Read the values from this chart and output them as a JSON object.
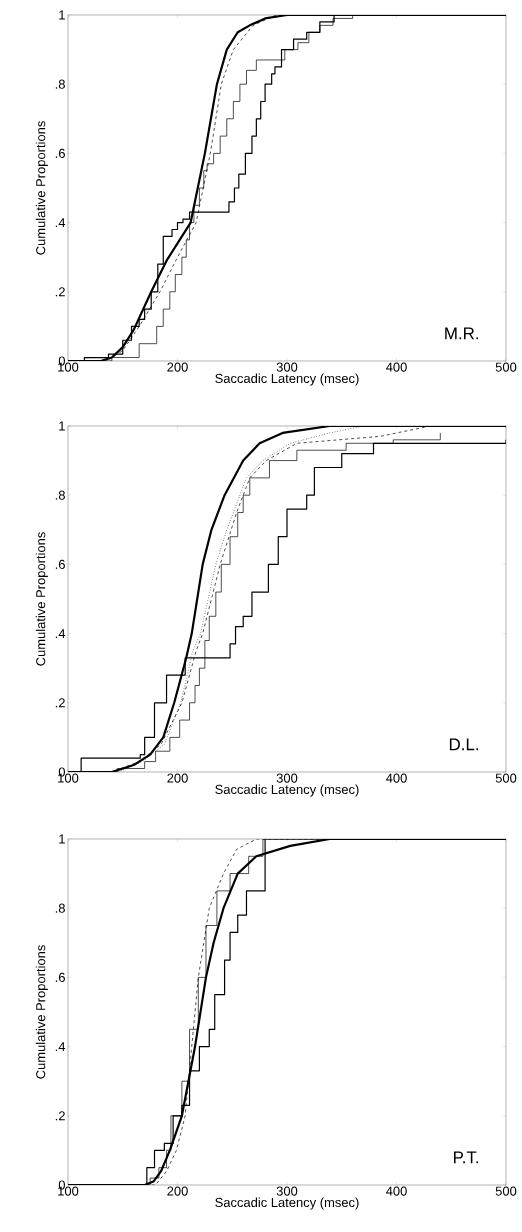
{
  "chart_data": [
    {
      "type": "line",
      "xlabel": "Saccadic Latency (msec)",
      "ylabel": "Cumulative Proportions",
      "annotations": [
        "M.R."
      ],
      "xlim": [
        100,
        500
      ],
      "ylim": [
        0,
        1
      ],
      "xticks": [
        100,
        200,
        300,
        400,
        500
      ],
      "yticks": [
        0,
        {
          "value": 0.2,
          "label": ".2"
        },
        {
          "value": 0.4,
          "label": ".4"
        },
        {
          "value": 0.6,
          "label": ".6"
        },
        {
          "value": 0.8,
          "label": ".8"
        },
        1
      ],
      "series": [
        {
          "type": "line",
          "line_style": "solid",
          "color": "#000000",
          "x": [
            100,
            130,
            140,
            150,
            160,
            176,
            190,
            212,
            225,
            236,
            245,
            255,
            266,
            280,
            300,
            500
          ],
          "values": [
            0,
            0,
            0.01,
            0.04,
            0.09,
            0.2,
            0.29,
            0.4,
            0.6,
            0.8,
            0.9,
            0.95,
            0.97,
            0.99,
            1,
            1
          ]
        },
        {
          "type": "line",
          "line_style": "dashed",
          "color": "#000000",
          "x": [
            100,
            135,
            150,
            165,
            184,
            200,
            217,
            230,
            240,
            251,
            269,
            290,
            500
          ],
          "values": [
            0,
            0,
            0.03,
            0.1,
            0.2,
            0.3,
            0.4,
            0.6,
            0.8,
            0.9,
            0.97,
            1,
            1
          ]
        },
        {
          "type": "step",
          "line_style": "solid",
          "color": "#000000",
          "x": [
            100,
            140,
            165,
            181,
            187,
            193,
            198,
            204,
            208,
            211,
            215,
            220,
            224,
            227,
            233,
            239,
            245,
            251,
            257,
            263,
            272,
            298,
            310,
            320,
            330,
            342,
            360,
            500
          ],
          "values": [
            0,
            0.01,
            0.05,
            0.1,
            0.15,
            0.2,
            0.25,
            0.3,
            0.35,
            0.4,
            0.45,
            0.5,
            0.55,
            0.57,
            0.6,
            0.65,
            0.7,
            0.75,
            0.8,
            0.84,
            0.87,
            0.9,
            0.92,
            0.95,
            0.97,
            0.99,
            1,
            1
          ]
        },
        {
          "type": "step",
          "line_style": "solid",
          "color": "#000000",
          "x": [
            100,
            115,
            137,
            150,
            158,
            165,
            170,
            176,
            182,
            187,
            195,
            200,
            205,
            211,
            247,
            252,
            256,
            262,
            268,
            272,
            276,
            280,
            286,
            289,
            295,
            306,
            318,
            330,
            343,
            500
          ],
          "values": [
            0,
            0.01,
            0.02,
            0.06,
            0.1,
            0.12,
            0.15,
            0.2,
            0.28,
            0.36,
            0.38,
            0.4,
            0.41,
            0.43,
            0.46,
            0.5,
            0.54,
            0.6,
            0.65,
            0.7,
            0.75,
            0.8,
            0.83,
            0.85,
            0.9,
            0.93,
            0.95,
            0.98,
            1,
            1
          ]
        }
      ]
    },
    {
      "type": "line",
      "xlabel": "Saccadic Latency (msec)",
      "ylabel": "Cumulative Proportions",
      "annotations": [
        "D.L."
      ],
      "xlim": [
        100,
        500
      ],
      "ylim": [
        0,
        1
      ],
      "xticks": [
        100,
        200,
        300,
        400,
        500
      ],
      "yticks": [
        0,
        {
          "value": 0.2,
          "label": ".2"
        },
        {
          "value": 0.4,
          "label": ".4"
        },
        {
          "value": 0.6,
          "label": ".6"
        },
        {
          "value": 0.8,
          "label": ".8"
        },
        1
      ],
      "series": [
        {
          "type": "line",
          "line_style": "solid",
          "color": "#000000",
          "x": [
            100,
            140,
            160,
            175,
            187,
            197,
            208,
            213,
            223,
            231,
            243,
            260,
            275,
            296,
            339,
            500
          ],
          "values": [
            0,
            0,
            0.02,
            0.05,
            0.1,
            0.2,
            0.33,
            0.4,
            0.6,
            0.7,
            0.8,
            0.9,
            0.95,
            0.98,
            1,
            1
          ]
        },
        {
          "type": "line",
          "line_style": "dashed",
          "color": "#000000",
          "x": [
            100,
            140,
            165,
            185,
            204,
            217,
            223,
            239,
            254,
            266,
            281,
            309,
            385,
            431,
            500
          ],
          "values": [
            0,
            0,
            0.03,
            0.08,
            0.2,
            0.35,
            0.4,
            0.6,
            0.75,
            0.85,
            0.9,
            0.95,
            0.97,
            1,
            1
          ]
        },
        {
          "type": "line",
          "line_style": "dotted",
          "color": "#000000",
          "x": [
            146,
            168,
            188,
            203,
            214,
            221,
            235,
            245,
            263,
            278,
            303,
            339,
            370
          ],
          "values": [
            0,
            0.03,
            0.08,
            0.2,
            0.35,
            0.4,
            0.6,
            0.7,
            0.85,
            0.9,
            0.95,
            0.98,
            1
          ]
        },
        {
          "type": "step",
          "line_style": "solid",
          "color": "#000000",
          "x": [
            100,
            145,
            170,
            180,
            193,
            202,
            211,
            216,
            220,
            225,
            229,
            235,
            240,
            248,
            255,
            260,
            266,
            284,
            309,
            354,
            397,
            440
          ],
          "values": [
            0,
            0.01,
            0.03,
            0.06,
            0.1,
            0.15,
            0.2,
            0.25,
            0.3,
            0.38,
            0.45,
            0.52,
            0.6,
            0.68,
            0.75,
            0.8,
            0.85,
            0.9,
            0.93,
            0.95,
            0.96,
            0.98
          ]
        },
        {
          "type": "step",
          "line_style": "solid",
          "color": "#000000",
          "x": [
            100,
            112,
            150,
            166,
            170,
            179,
            190,
            207,
            248,
            253,
            260,
            268,
            283,
            292,
            300,
            318,
            325,
            350,
            379,
            500
          ],
          "values": [
            0,
            0.04,
            0.04,
            0.05,
            0.1,
            0.2,
            0.28,
            0.33,
            0.37,
            0.42,
            0.45,
            0.52,
            0.6,
            0.68,
            0.76,
            0.8,
            0.88,
            0.92,
            0.95,
            0.96
          ]
        }
      ]
    },
    {
      "type": "line",
      "xlabel": "Saccadic Latency (msec)",
      "ylabel": "Cumulative Proportions",
      "annotations": [
        "P.T."
      ],
      "xlim": [
        100,
        500
      ],
      "ylim": [
        0,
        1
      ],
      "xticks": [
        100,
        200,
        300,
        400,
        500
      ],
      "yticks": [
        0,
        {
          "value": 0.2,
          "label": ".2"
        },
        {
          "value": 0.4,
          "label": ".4"
        },
        {
          "value": 0.6,
          "label": ".6"
        },
        {
          "value": 0.8,
          "label": ".8"
        },
        1
      ],
      "series": [
        {
          "type": "line",
          "line_style": "solid",
          "color": "#000000",
          "x": [
            100,
            170,
            178,
            185,
            193,
            204,
            216,
            226,
            233,
            242,
            255,
            272,
            303,
            339,
            500
          ],
          "values": [
            0,
            0,
            0.01,
            0.04,
            0.1,
            0.2,
            0.4,
            0.6,
            0.7,
            0.8,
            0.9,
            0.95,
            0.98,
            1,
            1
          ]
        },
        {
          "type": "line",
          "line_style": "dashed",
          "color": "#000000",
          "x": [
            100,
            180,
            190,
            199,
            207,
            213,
            219,
            229,
            242,
            254,
            272,
            500
          ],
          "values": [
            0,
            0,
            0.04,
            0.1,
            0.2,
            0.4,
            0.6,
            0.8,
            0.9,
            0.97,
            1,
            1
          ]
        },
        {
          "type": "step",
          "line_style": "solid",
          "color": "#000000",
          "x": [
            100,
            175,
            183,
            190,
            194,
            204,
            211,
            219,
            226,
            236,
            248,
            265,
            278,
            500
          ],
          "values": [
            0,
            0.02,
            0.05,
            0.1,
            0.2,
            0.3,
            0.45,
            0.6,
            0.75,
            0.85,
            0.9,
            0.95,
            1,
            1
          ]
        },
        {
          "type": "step",
          "line_style": "solid",
          "color": "#000000",
          "x": [
            100,
            172,
            179,
            188,
            196,
            204,
            211,
            220,
            229,
            234,
            243,
            248,
            255,
            263,
            280,
            500
          ],
          "values": [
            0,
            0.05,
            0.1,
            0.12,
            0.2,
            0.23,
            0.33,
            0.4,
            0.45,
            0.55,
            0.65,
            0.73,
            0.78,
            0.85,
            1,
            1
          ]
        }
      ]
    }
  ]
}
